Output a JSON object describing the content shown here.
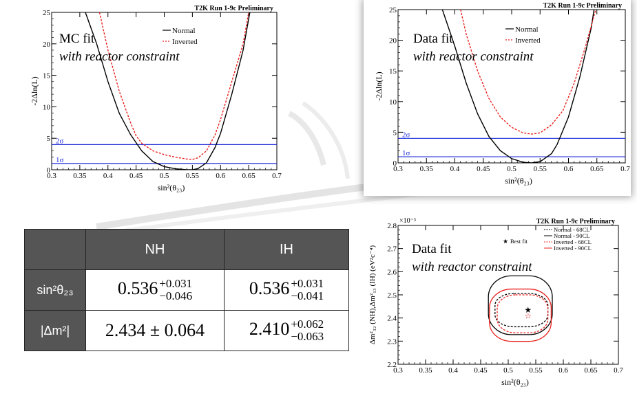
{
  "chart_data": [
    {
      "type": "line",
      "header": "T2K Run 1-9c Preliminary",
      "annotation_line1": "MC fit",
      "annotation_line2": "with reactor constraint",
      "xlabel": "sin²(θ₂₃)",
      "ylabel": "-2Δln(L)",
      "xlim": [
        0.3,
        0.7
      ],
      "ylim": [
        0,
        25
      ],
      "x_ticks": [
        "0.3",
        "0.35",
        "0.4",
        "0.45",
        "0.5",
        "0.55",
        "0.6",
        "0.65",
        "0.7"
      ],
      "y_ticks": [
        "0",
        "5",
        "10",
        "15",
        "20",
        "25"
      ],
      "hlines": [
        {
          "label": "1σ",
          "y": 1
        },
        {
          "label": "2σ",
          "y": 4
        }
      ],
      "series": [
        {
          "name": "Normal",
          "style": "solid",
          "color": "#000000",
          "points": [
            [
              0.36,
              25
            ],
            [
              0.38,
              20
            ],
            [
              0.4,
              14
            ],
            [
              0.42,
              9
            ],
            [
              0.44,
              5.6
            ],
            [
              0.46,
              3.0
            ],
            [
              0.48,
              1.3
            ],
            [
              0.5,
              0.5
            ],
            [
              0.52,
              0.15
            ],
            [
              0.54,
              0.0
            ],
            [
              0.55,
              0.0
            ],
            [
              0.56,
              0.2
            ],
            [
              0.575,
              1.1
            ],
            [
              0.59,
              3.5
            ],
            [
              0.6,
              5.8
            ],
            [
              0.62,
              12
            ],
            [
              0.64,
              19
            ],
            [
              0.652,
              25
            ]
          ]
        },
        {
          "name": "Inverted",
          "style": "dashed",
          "color": "#e8201c",
          "points": [
            [
              0.385,
              25
            ],
            [
              0.4,
              19
            ],
            [
              0.42,
              12.5
            ],
            [
              0.44,
              7.5
            ],
            [
              0.45,
              5.4
            ],
            [
              0.46,
              4.2
            ],
            [
              0.48,
              3.0
            ],
            [
              0.5,
              2.4
            ],
            [
              0.52,
              2.0
            ],
            [
              0.54,
              1.7
            ],
            [
              0.55,
              1.65
            ],
            [
              0.56,
              1.9
            ],
            [
              0.575,
              3.0
            ],
            [
              0.59,
              5.5
            ],
            [
              0.6,
              8
            ],
            [
              0.62,
              14
            ],
            [
              0.64,
              20
            ],
            [
              0.65,
              25
            ]
          ]
        }
      ]
    },
    {
      "type": "line",
      "header": "T2K Run 1-9c Preliminary",
      "annotation_line1": "Data fit",
      "annotation_line2": "with reactor constraint",
      "xlabel": "sin²(θ₂₃)",
      "ylabel": "-2Δln(L)",
      "xlim": [
        0.3,
        0.7
      ],
      "ylim": [
        0,
        25
      ],
      "x_ticks": [
        "0.3",
        "0.35",
        "0.4",
        "0.45",
        "0.5",
        "0.55",
        "0.6",
        "0.65",
        "0.7"
      ],
      "y_ticks": [
        "0",
        "5",
        "10",
        "15",
        "20",
        "25"
      ],
      "hlines": [
        {
          "label": "1σ",
          "y": 1
        },
        {
          "label": "2σ",
          "y": 4
        }
      ],
      "series": [
        {
          "name": "Normal",
          "style": "solid",
          "color": "#000000",
          "points": [
            [
              0.378,
              25
            ],
            [
              0.4,
              19
            ],
            [
              0.42,
              13
            ],
            [
              0.44,
              8
            ],
            [
              0.46,
              4.3
            ],
            [
              0.48,
              2.0
            ],
            [
              0.5,
              0.7
            ],
            [
              0.52,
              0.1
            ],
            [
              0.535,
              0.0
            ],
            [
              0.55,
              0.2
            ],
            [
              0.57,
              1.5
            ],
            [
              0.58,
              3.0
            ],
            [
              0.6,
              7.5
            ],
            [
              0.62,
              14
            ],
            [
              0.64,
              22
            ],
            [
              0.645,
              25
            ]
          ]
        },
        {
          "name": "Inverted",
          "style": "dashed",
          "color": "#e8201c",
          "points": [
            [
              0.41,
              25
            ],
            [
              0.42,
              21
            ],
            [
              0.44,
              15
            ],
            [
              0.46,
              10.5
            ],
            [
              0.48,
              7.5
            ],
            [
              0.5,
              5.8
            ],
            [
              0.52,
              4.9
            ],
            [
              0.535,
              4.7
            ],
            [
              0.55,
              4.9
            ],
            [
              0.57,
              6.2
            ],
            [
              0.59,
              8.5
            ],
            [
              0.61,
              13
            ],
            [
              0.63,
              19
            ],
            [
              0.648,
              25
            ]
          ]
        }
      ]
    },
    {
      "type": "contour",
      "header": "T2K Run 1-9c Preliminary",
      "annotation_line1": "Data fit",
      "annotation_line2": "with reactor constraint",
      "exponent_label": "×10⁻³",
      "xlabel": "sin²(θ₂₃)",
      "ylabel": "Δm²₃₂ (NH),Δm²₁₃ (IH) (eV²c⁻⁴)",
      "xlim": [
        0.3,
        0.7
      ],
      "ylim": [
        2.2,
        2.8
      ],
      "x_ticks": [
        "0.3",
        "0.35",
        "0.4",
        "0.45",
        "0.5",
        "0.55",
        "0.6",
        "0.65",
        "0.7"
      ],
      "y_ticks": [
        "2.2",
        "2.3",
        "2.4",
        "2.5",
        "2.6",
        "2.7",
        "2.8"
      ],
      "legend": [
        "Normal - 68CL",
        "Normal - 90CL",
        "Inverted - 68CL",
        "Inverted - 90CL"
      ],
      "best_fit_label": "Best fit",
      "best_fit": [
        {
          "name": "Normal",
          "x": 0.536,
          "y": 2.434
        },
        {
          "name": "Inverted",
          "x": 0.536,
          "y": 2.41
        }
      ],
      "contours": [
        {
          "name": "Normal - 68CL",
          "color": "#000000",
          "style": "dashed",
          "cx": 0.524,
          "cy": 2.434,
          "rx": 0.048,
          "ry": 0.072
        },
        {
          "name": "Normal - 90CL",
          "color": "#000000",
          "style": "solid",
          "cx": 0.522,
          "cy": 2.455,
          "rx": 0.058,
          "ry": 0.127
        },
        {
          "name": "Inverted - 68CL",
          "color": "#e8201c",
          "style": "dashed",
          "cx": 0.526,
          "cy": 2.418,
          "rx": 0.046,
          "ry": 0.082
        },
        {
          "name": "Inverted - 90CL",
          "color": "#e8201c",
          "style": "solid",
          "cx": 0.522,
          "cy": 2.412,
          "rx": 0.056,
          "ry": 0.113
        }
      ]
    }
  ],
  "table": {
    "col_nh": "NH",
    "col_ih": "IH",
    "row1_label": "sin²θ₂₃",
    "row2_label": "|Δm²|",
    "r1_nh_main": "0.536",
    "r1_nh_up": "+0.031",
    "r1_nh_down": "−0.046",
    "r1_ih_main": "0.536",
    "r1_ih_up": "+0.031",
    "r1_ih_down": "−0.041",
    "r2_nh": "2.434 ± 0.064",
    "r2_ih_main": "2.410",
    "r2_ih_up": "+0.062",
    "r2_ih_down": "−0.063"
  },
  "colors": {
    "normal": "#000000",
    "inverted": "#e8201c",
    "sigma_lines": "#1d2bd8",
    "table_header": "#555555"
  }
}
